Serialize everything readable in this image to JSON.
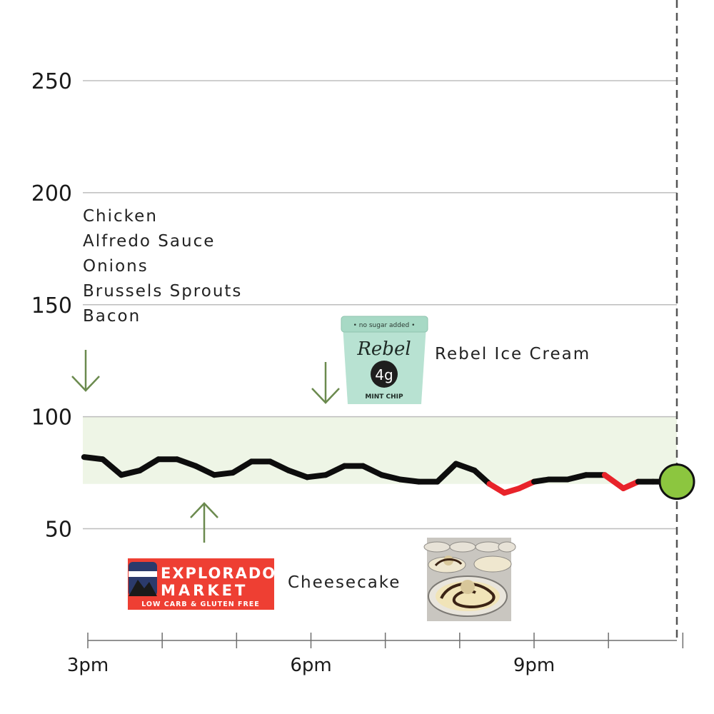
{
  "chart_data": {
    "type": "line",
    "y_ticks": [
      50,
      100,
      150,
      200,
      250
    ],
    "y_tick_labels": [
      "50",
      "100",
      "150",
      "200",
      "250"
    ],
    "x_tick_labels": [
      "3pm",
      "6pm",
      "9pm"
    ],
    "x_label_positions_hours": [
      15,
      18,
      21
    ],
    "ylim": [
      0,
      290
    ],
    "xlim_hours": [
      15,
      23
    ],
    "target_range": [
      70,
      100
    ],
    "grid": true,
    "colors": {
      "line": "#0d0d0d",
      "below_range": "#e8232a",
      "target_band": "#eef5e6",
      "current_marker": "#8cc63f",
      "arrow": "#6b8a4e",
      "grid": "#bdbdbd",
      "now_line": "#555555"
    },
    "series": [
      {
        "x": [
          14.95,
          15.2,
          15.45,
          15.7,
          15.95,
          16.2,
          16.45,
          16.7,
          16.95,
          17.2,
          17.45,
          17.7,
          17.95,
          18.2,
          18.45,
          18.7,
          18.95,
          19.2,
          19.45,
          19.7,
          19.95,
          20.2,
          20.4,
          20.6,
          20.8,
          21.0,
          21.2,
          21.45,
          21.7,
          21.95,
          22.2,
          22.4,
          22.6,
          22.8,
          23.0
        ],
        "y": [
          82,
          81,
          74,
          76,
          81,
          81,
          78,
          74,
          75,
          80,
          80,
          76,
          73,
          74,
          78,
          78,
          74,
          72,
          71,
          71,
          79,
          76,
          70,
          66,
          68,
          71,
          72,
          72,
          74,
          74,
          68,
          71,
          71,
          71,
          71
        ]
      }
    ],
    "current_value": 71,
    "annotations": [
      {
        "lines": [
          "Chicken",
          "Alfredo Sauce",
          "Onions",
          "Brussels Sprouts",
          "Bacon"
        ],
        "arrow": "down"
      },
      {
        "lines": [
          "Rebel Ice Cream"
        ],
        "arrow": "down",
        "image": "ice-cream-pint"
      },
      {
        "lines": [
          "Cheesecake"
        ],
        "arrow": "up",
        "image": "cheesecake-photo"
      }
    ]
  },
  "logo": {
    "line1": "EXPLORADO",
    "line2": "MARKET",
    "tagline": "LOW CARB & GLUTEN FREE"
  },
  "pint": {
    "brand": "Rebel",
    "carbs": "4g",
    "flavor": "MINT CHIP",
    "band_text": "• no sugar added •"
  }
}
